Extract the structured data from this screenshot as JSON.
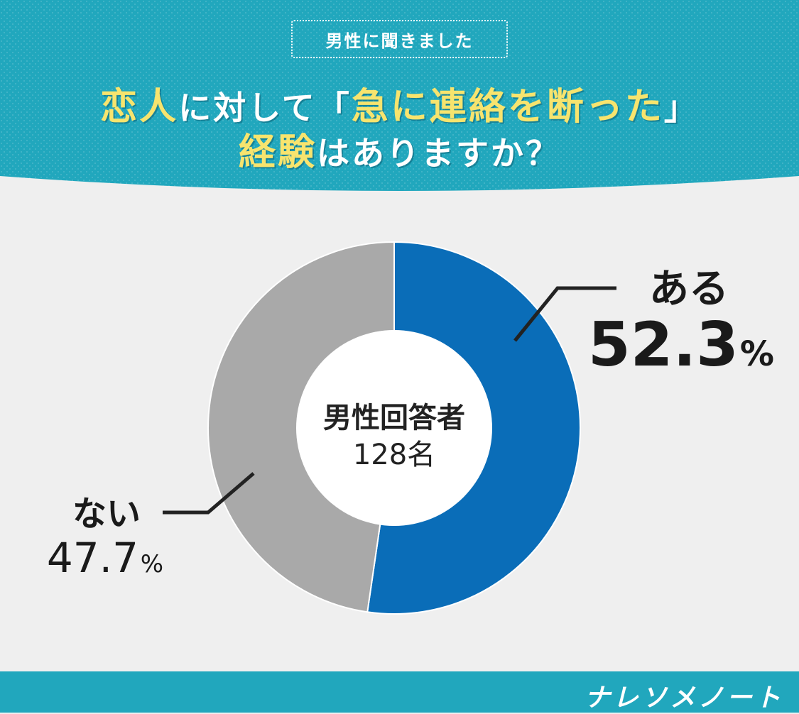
{
  "header": {
    "badge": "男性に聞きました",
    "title_line1": {
      "hl1": "恋人",
      "t1": "に対して「",
      "hl2": "急に連絡を断った",
      "t2": "」"
    },
    "title_line2": {
      "hl1": "経験",
      "t1": "はありますか？"
    }
  },
  "colors": {
    "header_bg": "#21a7bd",
    "highlight": "#f7e46e",
    "yes": "#0a6db8",
    "no": "#a9a9a9",
    "background": "#efefef"
  },
  "chart_data": {
    "type": "pie",
    "style": "donut",
    "center_label_line1": "男性回答者",
    "center_label_line2": "128名",
    "slices": [
      {
        "label": "ある",
        "value": 52.3,
        "display": "52.3",
        "unit": "%"
      },
      {
        "label": "ない",
        "value": 47.7,
        "display": "47.7",
        "unit": "%"
      }
    ]
  },
  "footer": {
    "brand": "ナレソメノート"
  }
}
